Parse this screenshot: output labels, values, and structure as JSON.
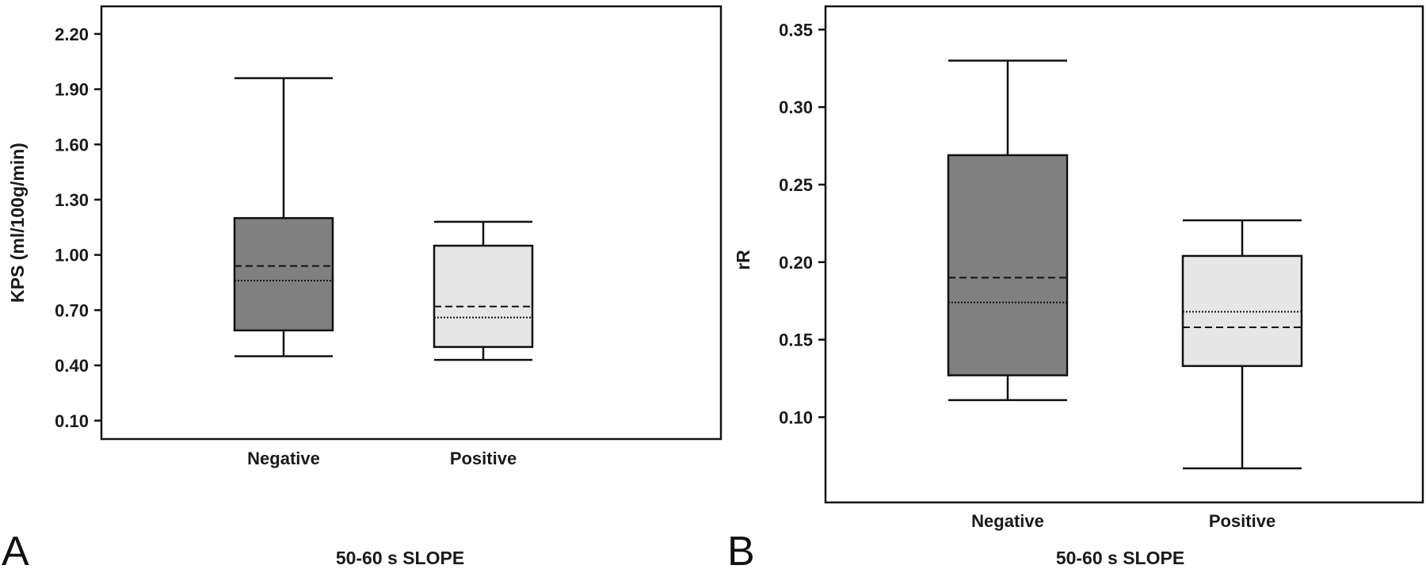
{
  "chart_data": [
    {
      "type": "box",
      "panel_label": "A",
      "xlabel": "50-60 s SLOPE",
      "ylabel": "KPS (ml/100g/min)",
      "ylim": [
        0.0,
        2.35
      ],
      "yticks": [
        "0.10",
        "0.40",
        "0.70",
        "1.00",
        "1.30",
        "1.60",
        "1.90",
        "2.20"
      ],
      "categories": [
        "Negative",
        "Positive"
      ],
      "colors": [
        "#808080",
        "#e6e6e6"
      ],
      "boxes": [
        {
          "category": "Negative",
          "whisker_low": 0.45,
          "q1": 0.59,
          "median": 0.86,
          "mean": 0.94,
          "q3": 1.2,
          "whisker_high": 1.96
        },
        {
          "category": "Positive",
          "whisker_low": 0.43,
          "q1": 0.5,
          "median": 0.66,
          "mean": 0.72,
          "q3": 1.05,
          "whisker_high": 1.18
        }
      ]
    },
    {
      "type": "box",
      "panel_label": "B",
      "xlabel": "50-60 s SLOPE",
      "ylabel": "rR",
      "ylim": [
        0.045,
        0.365
      ],
      "yticks": [
        "0.10",
        "0.15",
        "0.20",
        "0.25",
        "0.30",
        "0.35"
      ],
      "categories": [
        "Negative",
        "Positive"
      ],
      "colors": [
        "#808080",
        "#e6e6e6"
      ],
      "boxes": [
        {
          "category": "Negative",
          "whisker_low": 0.111,
          "q1": 0.127,
          "median": 0.174,
          "mean": 0.19,
          "q3": 0.269,
          "whisker_high": 0.33
        },
        {
          "category": "Positive",
          "whisker_low": 0.067,
          "q1": 0.133,
          "median": 0.168,
          "mean": 0.158,
          "q3": 0.204,
          "whisker_high": 0.227
        }
      ]
    }
  ]
}
